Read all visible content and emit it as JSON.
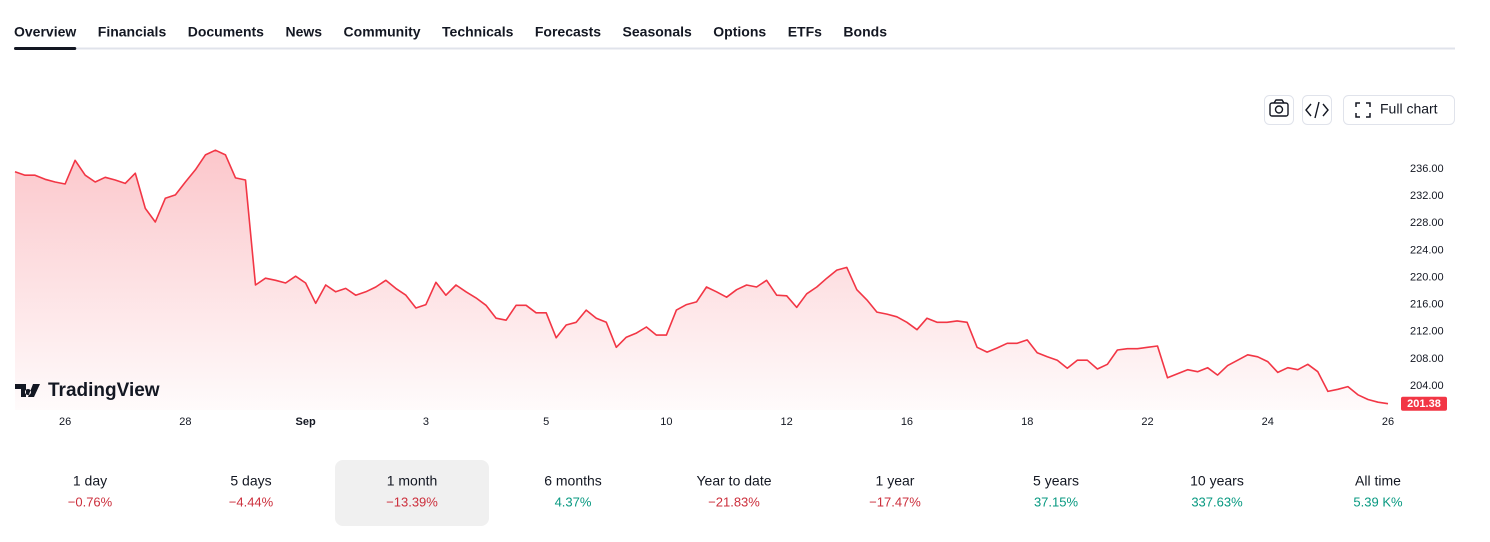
{
  "tabs": [
    "Overview",
    "Financials",
    "Documents",
    "News",
    "Community",
    "Technicals",
    "Forecasts",
    "Seasonals",
    "Options",
    "ETFs",
    "Bonds"
  ],
  "active_tab": 0,
  "full_chart_button": "Full chart",
  "watermark": "TradingView",
  "chart_data": {
    "type": "line",
    "categories": [
      null,
      null,
      null,
      null,
      null,
      "26",
      null,
      null,
      null,
      null,
      null,
      null,
      null,
      null,
      null,
      null,
      null,
      "28",
      null,
      null,
      null,
      null,
      null,
      null,
      null,
      null,
      null,
      null,
      null,
      "Sep",
      null,
      null,
      null,
      null,
      null,
      null,
      null,
      null,
      null,
      null,
      null,
      "3",
      null,
      null,
      null,
      null,
      null,
      null,
      null,
      null,
      null,
      null,
      null,
      "5",
      null,
      null,
      null,
      null,
      null,
      null,
      null,
      null,
      null,
      null,
      null,
      "10",
      null,
      null,
      null,
      null,
      null,
      null,
      null,
      null,
      null,
      null,
      null,
      "12",
      null,
      null,
      null,
      null,
      null,
      null,
      null,
      null,
      null,
      null,
      null,
      "16",
      null,
      null,
      null,
      null,
      null,
      null,
      null,
      null,
      null,
      null,
      null,
      "18",
      null,
      null,
      null,
      null,
      null,
      null,
      null,
      null,
      null,
      null,
      null,
      "22",
      null,
      null,
      null,
      null,
      null,
      null,
      null,
      null,
      null,
      null,
      null,
      "24",
      null,
      null,
      null,
      null,
      null,
      null,
      null,
      null,
      null,
      null,
      null,
      "26"
    ],
    "series": [
      {
        "color": "#f23645",
        "values": [
          235.6,
          235.1,
          235.1,
          234.5,
          234.1,
          233.8,
          237.3,
          235.1,
          234.1,
          234.8,
          234.4,
          233.9,
          235.4,
          230.2,
          228.2,
          231.7,
          232.2,
          234.1,
          235.9,
          238.1,
          238.8,
          238.1,
          234.7,
          234.4,
          218.9,
          219.9,
          219.6,
          219.2,
          220.2,
          219.2,
          216.2,
          218.9,
          217.9,
          218.4,
          217.4,
          217.9,
          218.6,
          219.6,
          218.4,
          217.4,
          215.5,
          216.0,
          219.3,
          217.4,
          218.9,
          217.9,
          217.0,
          215.9,
          214.0,
          213.7,
          215.9,
          215.9,
          214.8,
          214.8,
          211.1,
          213.0,
          213.4,
          215.2,
          214.0,
          213.4,
          209.7,
          211.2,
          211.8,
          212.7,
          211.5,
          211.5,
          215.2,
          216.0,
          216.4,
          218.6,
          217.9,
          217.1,
          218.2,
          218.9,
          218.6,
          219.6,
          217.4,
          217.3,
          215.6,
          217.6,
          218.6,
          219.9,
          221.1,
          221.5,
          218.2,
          216.7,
          214.9,
          214.6,
          214.2,
          213.4,
          212.3,
          214.0,
          213.4,
          213.4,
          213.6,
          213.4,
          209.7,
          209.0,
          209.6,
          210.3,
          210.3,
          210.8,
          208.9,
          208.3,
          207.8,
          206.6,
          207.8,
          207.8,
          206.5,
          207.2,
          209.3,
          209.5,
          209.5,
          209.7,
          209.9,
          205.2,
          205.8,
          206.4,
          206.1,
          206.7,
          205.6,
          207.0,
          207.8,
          208.6,
          208.3,
          207.6,
          206.0,
          206.7,
          206.4,
          207.2,
          206.1,
          203.2,
          203.5,
          203.9,
          202.7,
          202.0,
          201.6,
          201.38
        ]
      }
    ],
    "ylim": [
      200.45,
      240.3
    ],
    "yticks": [
      {
        "value": 204,
        "label": "204.00"
      },
      {
        "value": 208,
        "label": "208.00"
      },
      {
        "value": 212,
        "label": "212.00"
      },
      {
        "value": 216,
        "label": "216.00"
      },
      {
        "value": 220,
        "label": "220.00"
      },
      {
        "value": 224,
        "label": "224.00"
      },
      {
        "value": 228,
        "label": "228.00"
      },
      {
        "value": 232,
        "label": "232.00"
      },
      {
        "value": 236,
        "label": "236.00"
      }
    ]
  },
  "periods": [
    {
      "label": "1 day",
      "change": "−0.76%"
    },
    {
      "label": "5 days",
      "change": "−4.44%"
    },
    {
      "label": "1 month",
      "change": "−13.39%",
      "active": true
    },
    {
      "label": "6 months",
      "change": "4.37%"
    },
    {
      "label": "Year to date",
      "change": "−21.83%"
    },
    {
      "label": "1 year",
      "change": "−17.47%"
    },
    {
      "label": "5 years",
      "change": "37.15%"
    },
    {
      "label": "10 years",
      "change": "337.63%"
    },
    {
      "label": "All time",
      "change": "5.39 K%"
    }
  ]
}
